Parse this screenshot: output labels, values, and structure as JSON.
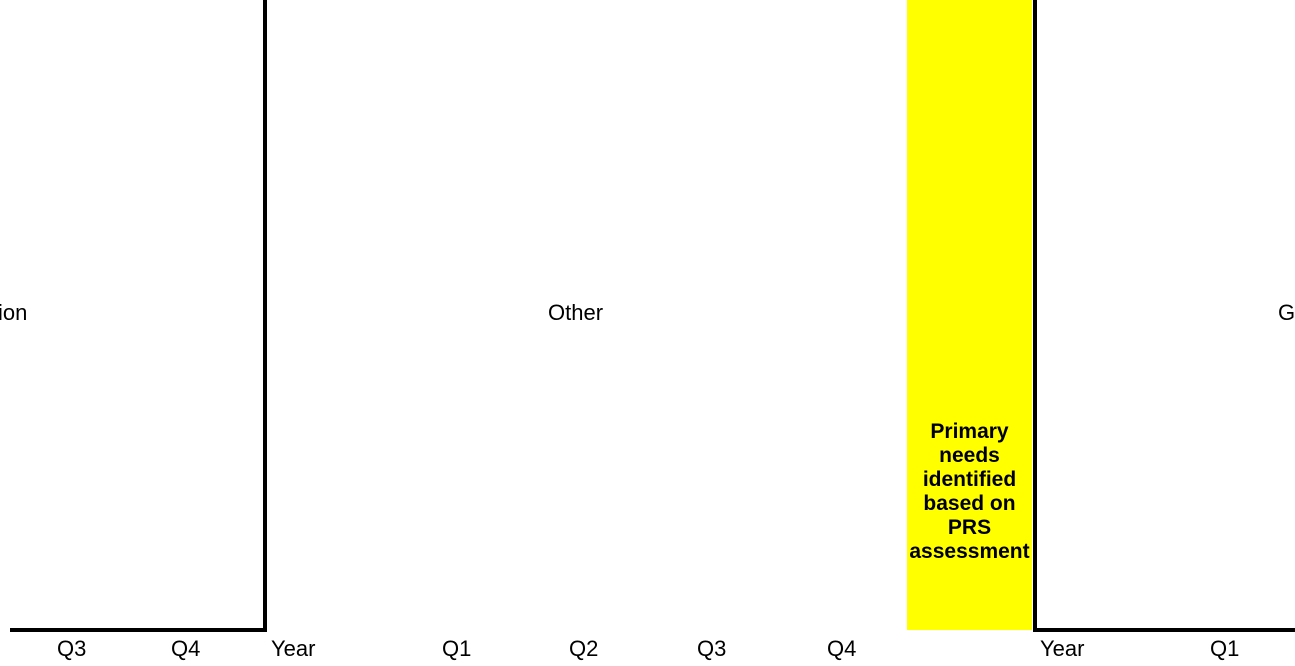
{
  "colors": {
    "highlight": "#ffff00",
    "border": "#000000"
  },
  "group_labels": {
    "left": "ion",
    "middle": "Other",
    "right": "G"
  },
  "highlight_text": "Primary needs identified based on PRS assessment",
  "column_headers": [
    "Q3",
    "Q4",
    "Year",
    "Q1",
    "Q2",
    "Q3",
    "Q4",
    "Year",
    "Q1"
  ]
}
